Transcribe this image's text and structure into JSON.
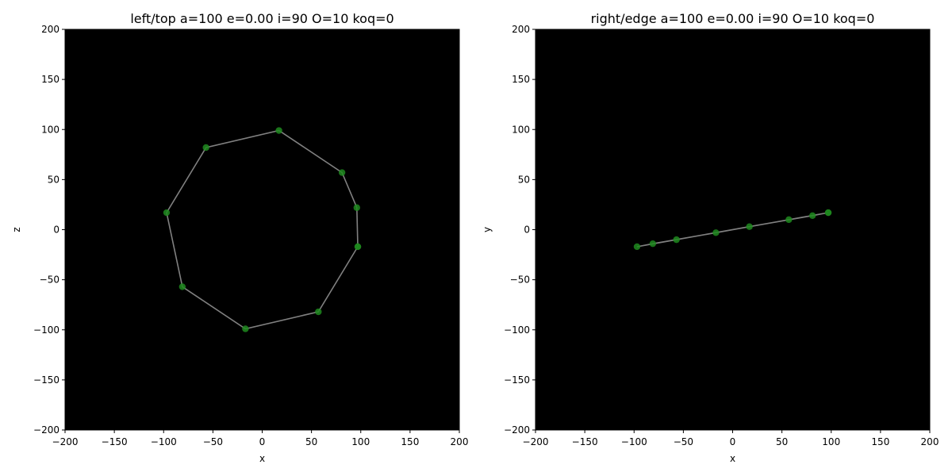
{
  "chart_data": [
    {
      "type": "line",
      "title": "left/top a=100 e=0.00 i=90 O=10 koq=0",
      "xlabel": "x",
      "ylabel": "z",
      "xlim": [
        -200,
        200
      ],
      "ylim": [
        -200,
        200
      ],
      "xticks": [
        -200,
        -150,
        -100,
        -50,
        0,
        50,
        100,
        150,
        200
      ],
      "yticks": [
        -200,
        -150,
        -100,
        -50,
        0,
        50,
        100,
        150,
        200
      ],
      "background": "#000000",
      "line_color": "#808080",
      "marker_color": "#1f8a1f",
      "grid": false,
      "points": [
        {
          "x": 97,
          "y": -17
        },
        {
          "x": 57,
          "y": -82
        },
        {
          "x": -17,
          "y": -99
        },
        {
          "x": -81,
          "y": -57
        },
        {
          "x": -97,
          "y": 17
        },
        {
          "x": -57,
          "y": 82
        },
        {
          "x": 17,
          "y": 99
        },
        {
          "x": 81,
          "y": 57
        },
        {
          "x": 96,
          "y": 22
        },
        {
          "x": 97,
          "y": -17
        }
      ]
    },
    {
      "type": "line",
      "title": "right/edge a=100 e=0.00 i=90 O=10 koq=0",
      "xlabel": "x",
      "ylabel": "y",
      "xlim": [
        -200,
        200
      ],
      "ylim": [
        -200,
        200
      ],
      "xticks": [
        -200,
        -150,
        -100,
        -50,
        0,
        50,
        100,
        150,
        200
      ],
      "yticks": [
        -200,
        -150,
        -100,
        -50,
        0,
        50,
        100,
        150,
        200
      ],
      "background": "#000000",
      "line_color": "#808080",
      "marker_color": "#1f8a1f",
      "grid": false,
      "points": [
        {
          "x": 97,
          "y": 17
        },
        {
          "x": 57,
          "y": 10
        },
        {
          "x": -17,
          "y": -3
        },
        {
          "x": -81,
          "y": -14
        },
        {
          "x": -97,
          "y": -17
        },
        {
          "x": -57,
          "y": -10
        },
        {
          "x": 17,
          "y": 3
        },
        {
          "x": 81,
          "y": 14
        },
        {
          "x": 97,
          "y": 17
        }
      ]
    }
  ]
}
